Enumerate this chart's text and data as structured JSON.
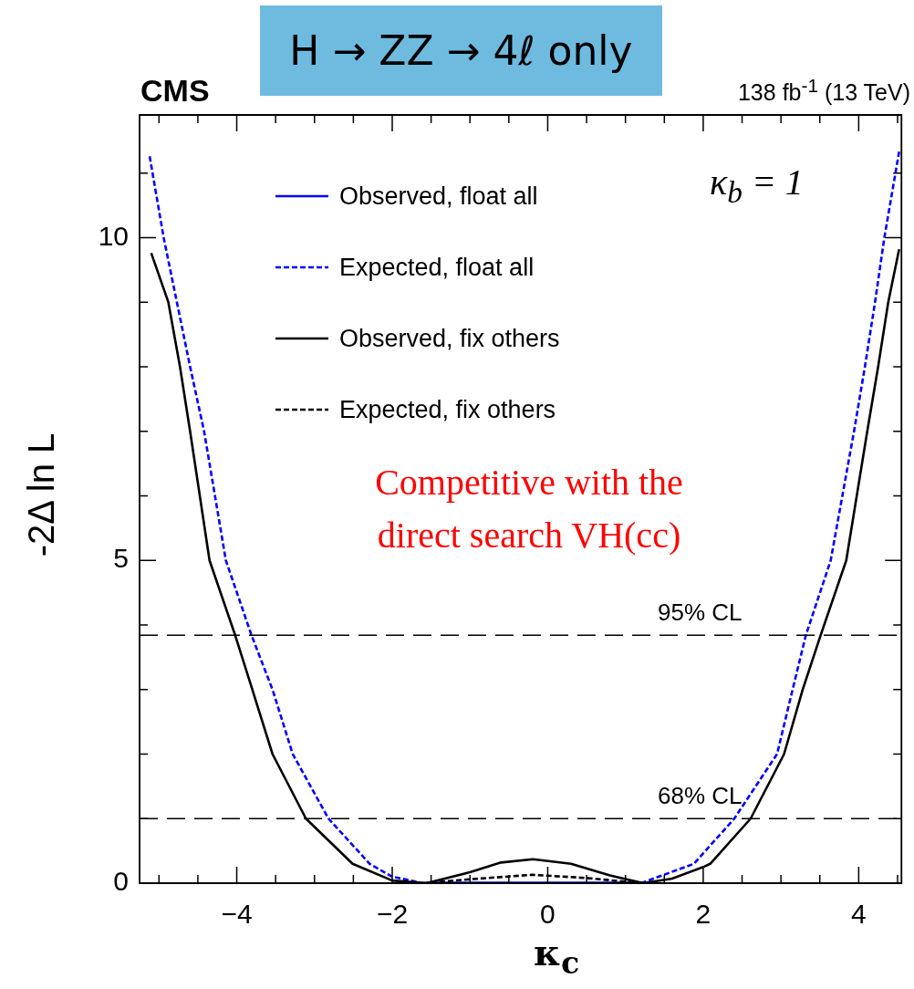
{
  "chart_data": {
    "type": "line",
    "xlabel": "κ$_{c}$",
    "ylabel": "-2Δ ln L",
    "annotations": [
      "CMS",
      "138 fb$^{-1}$ (13 TeV)",
      "H → ZZ → 4ℓ only",
      "κ$_{b}$ = 1",
      "Competitive with the direct search VH(cc)"
    ],
    "xlim": [
      -5.25,
      4.55
    ],
    "ylim": [
      0,
      11.9
    ],
    "xticks": [
      {
        "value": -5,
        "label": null
      },
      {
        "value": -4.5,
        "label": null
      },
      {
        "value": -4,
        "label": "−4"
      },
      {
        "value": -3.5,
        "label": null
      },
      {
        "value": -3,
        "label": null
      },
      {
        "value": -2.5,
        "label": null
      },
      {
        "value": -2,
        "label": "−2"
      },
      {
        "value": -1.5,
        "label": null
      },
      {
        "value": -1,
        "label": null
      },
      {
        "value": -0.5,
        "label": null
      },
      0,
      {
        "value": 0.5,
        "label": null
      },
      {
        "value": 1,
        "label": null
      },
      {
        "value": 1.5,
        "label": null
      },
      2,
      {
        "value": 2.5,
        "label": null
      },
      {
        "value": 3,
        "label": null
      },
      {
        "value": 3.5,
        "label": null
      },
      4,
      {
        "value": 4.5,
        "label": null
      }
    ],
    "yticks": [
      0,
      {
        "value": 1,
        "label": null
      },
      {
        "value": 2,
        "label": null
      },
      {
        "value": 3,
        "label": null
      },
      {
        "value": 4,
        "label": null
      },
      5,
      {
        "value": 6,
        "label": null
      },
      {
        "value": 7,
        "label": null
      },
      {
        "value": 8,
        "label": null
      },
      {
        "value": 9,
        "label": null
      },
      10,
      {
        "value": 11,
        "label": null
      }
    ],
    "legend": "top",
    "grid": false,
    "marker": "none",
    "ref_lines": [
      {
        "axis": "y",
        "value": 3.84,
        "label": "95% CL",
        "color": "#000000",
        "line_style": "dashed"
      },
      {
        "axis": "y",
        "value": 1,
        "label": "68% CL",
        "color": "#000000",
        "line_style": "dashed"
      }
    ],
    "series": [
      {
        "name": "Observed, float all",
        "color": "#0000ff",
        "line_style": "solid",
        "x": [
          -1.56,
          -1,
          0,
          1.23
        ],
        "values": [
          0,
          0,
          0,
          0
        ]
      },
      {
        "name": "Expected, float all",
        "color": "#0000ff",
        "line_style": "dashed",
        "x": [
          -5.12,
          -4.94,
          -4.77,
          -4.6,
          -4.42,
          -4.14,
          -3.81,
          -3.54,
          -3.28,
          -2.82,
          -2.29,
          -2,
          -1.6,
          -1,
          0,
          1.2,
          1.88,
          2.4,
          2.95,
          3.15,
          3.32,
          3.64,
          3.94,
          4.08,
          4.21,
          4.33,
          4.52
        ],
        "values": [
          11.26,
          10,
          9,
          8,
          7,
          5,
          3.84,
          3,
          2,
          1,
          0.3,
          0.1,
          0,
          null,
          null,
          0,
          0.3,
          1,
          2,
          3,
          3.84,
          5,
          7,
          8,
          9,
          10,
          11.33
        ]
      },
      {
        "name": "Observed, fix others",
        "color": "#000000",
        "line_style": "solid",
        "x": [
          -5.1,
          -4.88,
          -4.73,
          -4.6,
          -4.35,
          -4.02,
          -3.8,
          -3.54,
          -3.11,
          -2.51,
          -2,
          -1.56,
          -1,
          -0.6,
          -0.19,
          0.3,
          0.8,
          1.23,
          1.6,
          2,
          2.09,
          2.61,
          3.04,
          3.28,
          3.51,
          3.84,
          4.11,
          4.25,
          4.38,
          4.52
        ],
        "values": [
          9.76,
          9,
          8,
          7,
          5,
          3.84,
          3,
          2,
          1,
          0.3,
          0.04,
          0,
          0.17,
          0.32,
          0.37,
          0.3,
          0.12,
          0,
          0.07,
          0.25,
          0.3,
          1,
          2,
          3,
          3.84,
          5,
          7,
          8,
          9,
          9.82
        ]
      },
      {
        "name": "Expected, fix others",
        "color": "#000000",
        "line_style": "dashed",
        "x": [
          -1.6,
          -1,
          -0.2,
          0.5,
          1.2
        ],
        "values": [
          0,
          0.06,
          0.13,
          0.08,
          0
        ]
      }
    ]
  }
}
